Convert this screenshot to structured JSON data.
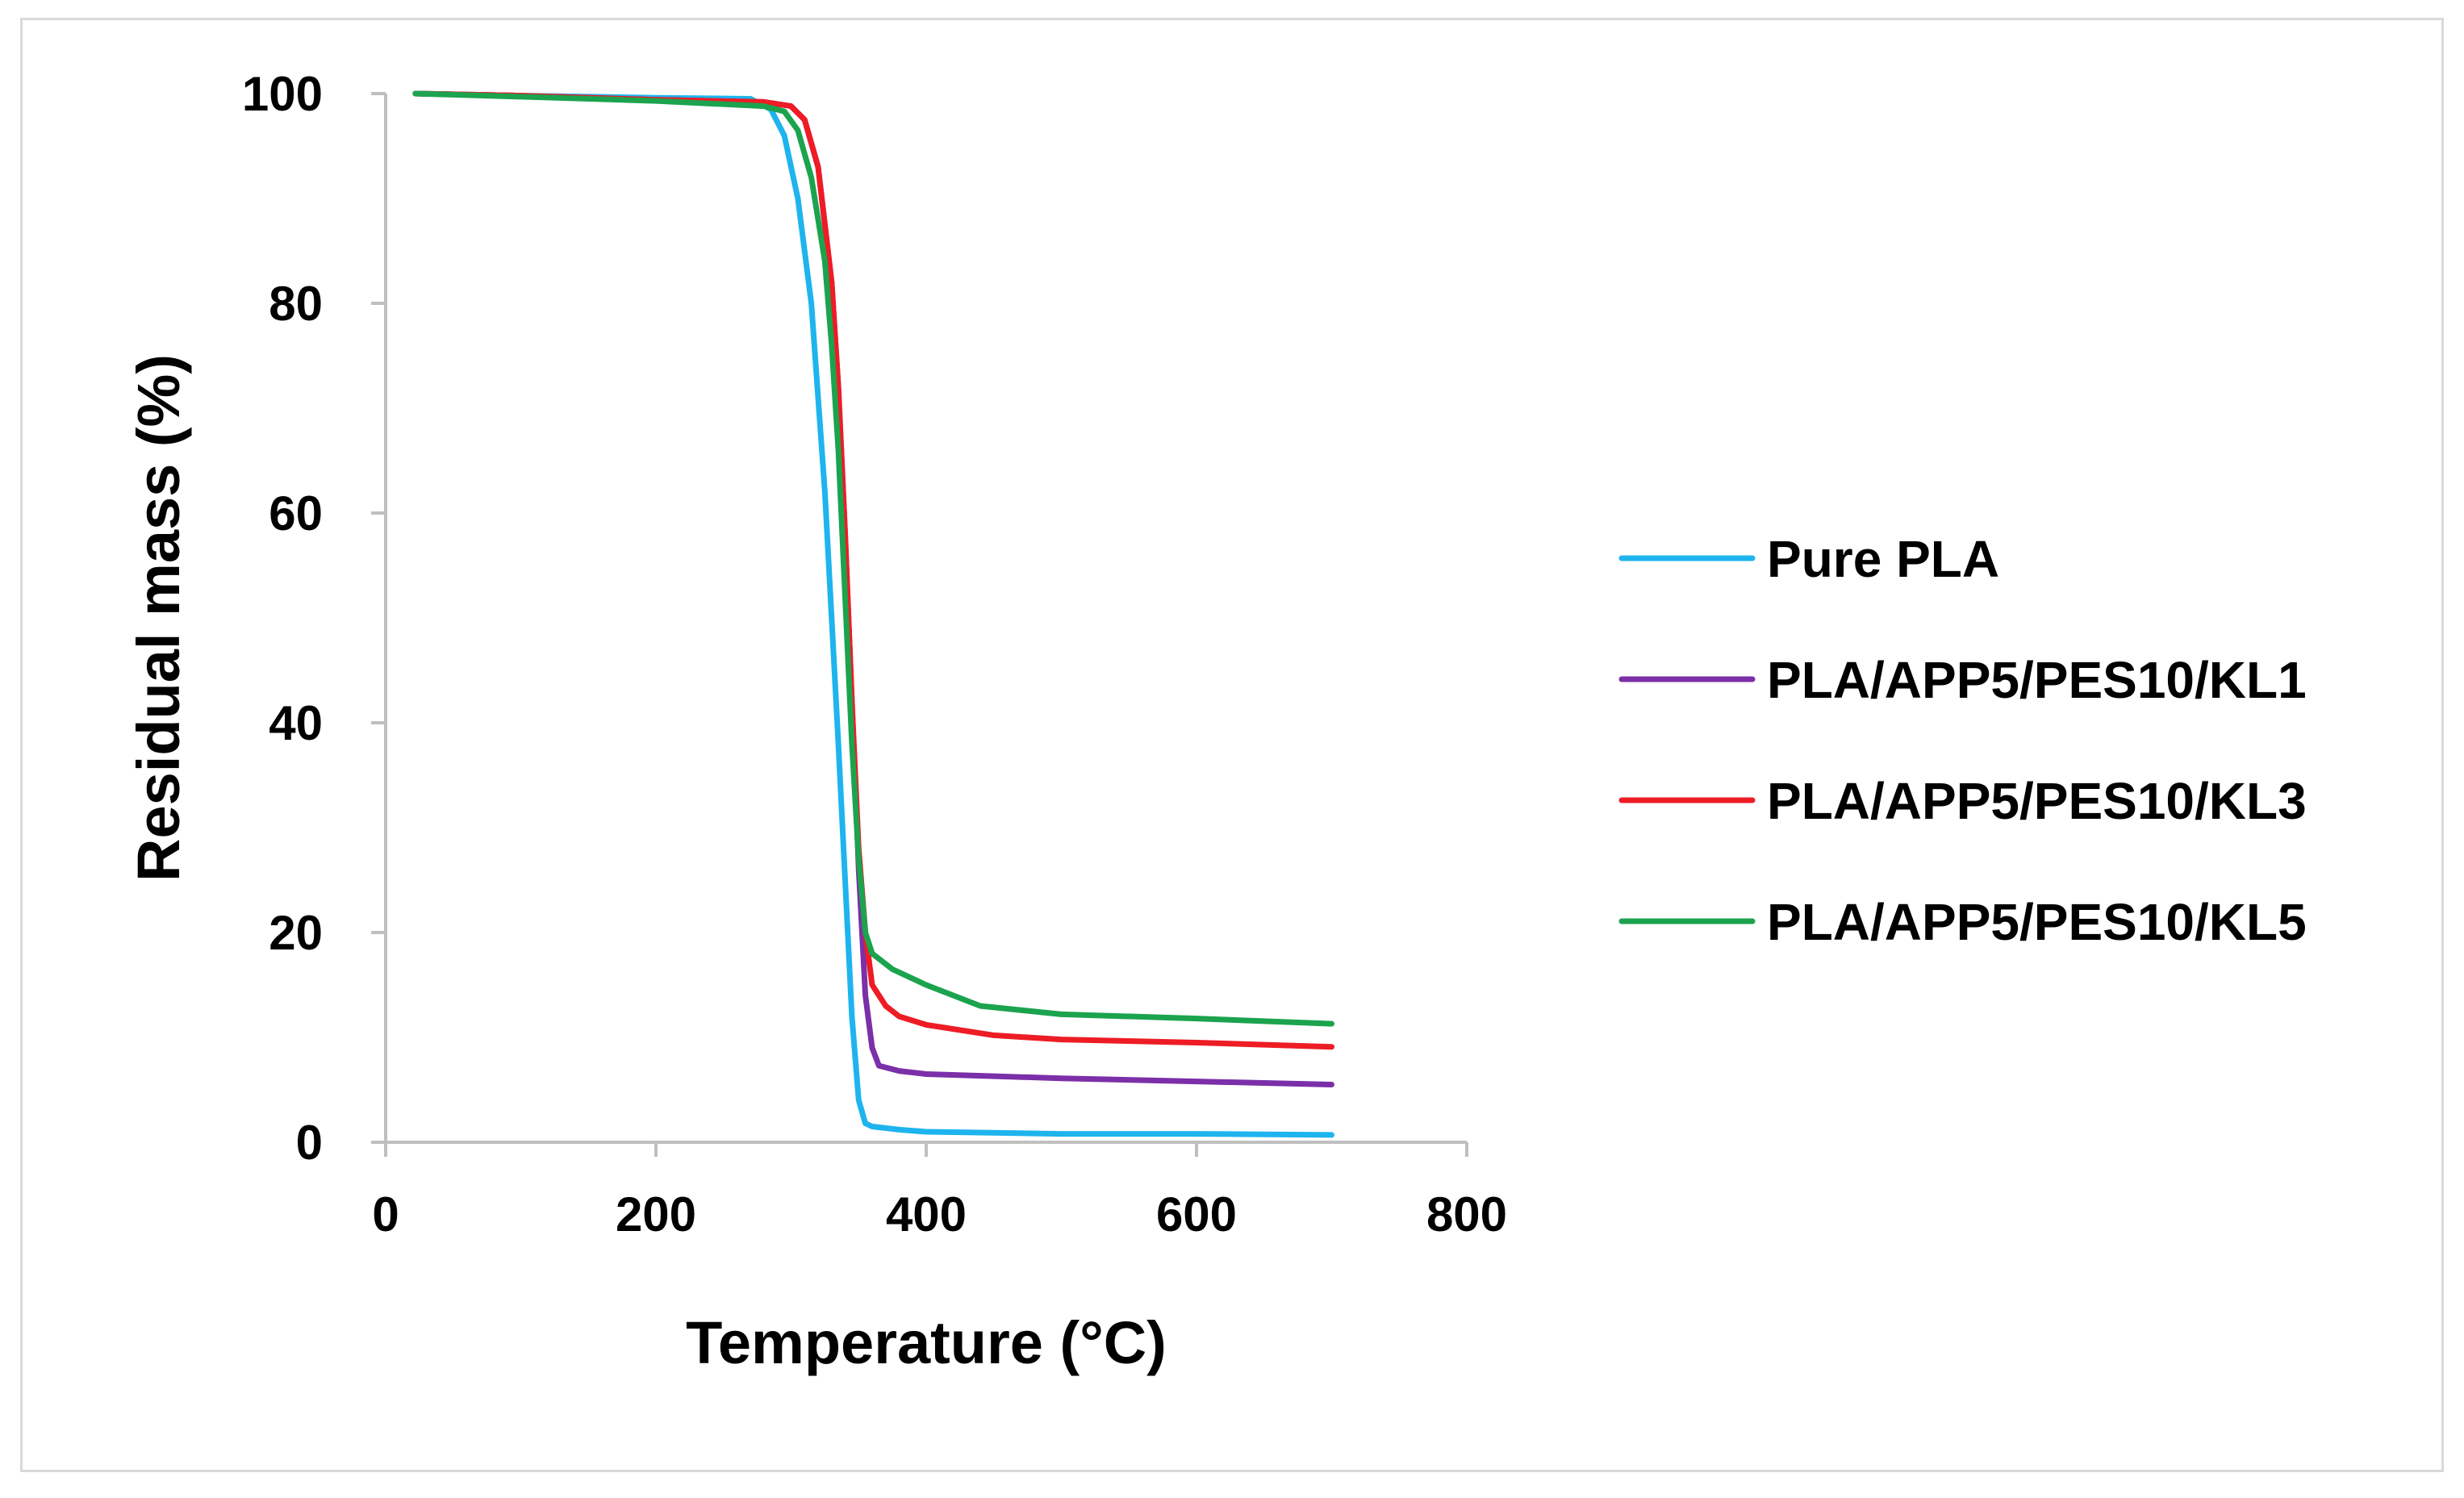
{
  "chart_data": {
    "type": "line",
    "title": "",
    "xlabel": "Temperature (°C)",
    "ylabel": "Residual mass (%)",
    "xlim": [
      0,
      800
    ],
    "ylim": [
      0,
      100
    ],
    "xticks": [
      0,
      200,
      400,
      600,
      800
    ],
    "yticks": [
      0,
      20,
      40,
      60,
      80,
      100
    ],
    "grid": false,
    "legend_position": "right",
    "series": [
      {
        "name": "Pure PLA",
        "color": "#1EB4EE",
        "x": [
          22,
          100,
          200,
          270,
          285,
          295,
          305,
          315,
          325,
          335,
          340,
          345,
          350,
          355,
          360,
          380,
          400,
          450,
          500,
          600,
          700
        ],
        "y": [
          100,
          99.8,
          99.6,
          99.5,
          98.5,
          96,
          90,
          80,
          62,
          38,
          25,
          12,
          4,
          1.8,
          1.5,
          1.2,
          1.0,
          0.9,
          0.8,
          0.8,
          0.7
        ]
      },
      {
        "name": "PLA/APP5/PES10/KL1",
        "color": "#7B2FA8",
        "x": [
          22,
          100,
          200,
          280,
          300,
          310,
          320,
          330,
          335,
          340,
          345,
          350,
          355,
          360,
          365,
          380,
          400,
          450,
          500,
          600,
          700
        ],
        "y": [
          100,
          99.8,
          99.4,
          99.2,
          98.8,
          97.5,
          93,
          82,
          72,
          58,
          42,
          26,
          14,
          9,
          7.3,
          6.8,
          6.5,
          6.3,
          6.1,
          5.8,
          5.5
        ]
      },
      {
        "name": "PLA/APP5/PES10/KL3",
        "color": "#EE1C25",
        "x": [
          22,
          100,
          200,
          280,
          300,
          310,
          320,
          330,
          335,
          340,
          345,
          350,
          355,
          360,
          370,
          380,
          400,
          450,
          500,
          600,
          700
        ],
        "y": [
          100,
          99.8,
          99.4,
          99.2,
          98.8,
          97.5,
          93,
          82,
          72,
          58,
          42,
          28,
          20,
          15,
          13,
          12,
          11.2,
          10.2,
          9.8,
          9.5,
          9.1
        ]
      },
      {
        "name": "PLA/APP5/PES10/KL5",
        "color": "#1BA34E",
        "x": [
          22,
          100,
          200,
          280,
          295,
          305,
          315,
          325,
          330,
          335,
          340,
          345,
          350,
          355,
          360,
          375,
          400,
          420,
          440,
          500,
          600,
          700
        ],
        "y": [
          100,
          99.7,
          99.3,
          98.8,
          98.3,
          96.5,
          92,
          84,
          76,
          66,
          52,
          38,
          27,
          20,
          18,
          16.5,
          15,
          14,
          13,
          12.2,
          11.8,
          11.3
        ]
      }
    ]
  }
}
